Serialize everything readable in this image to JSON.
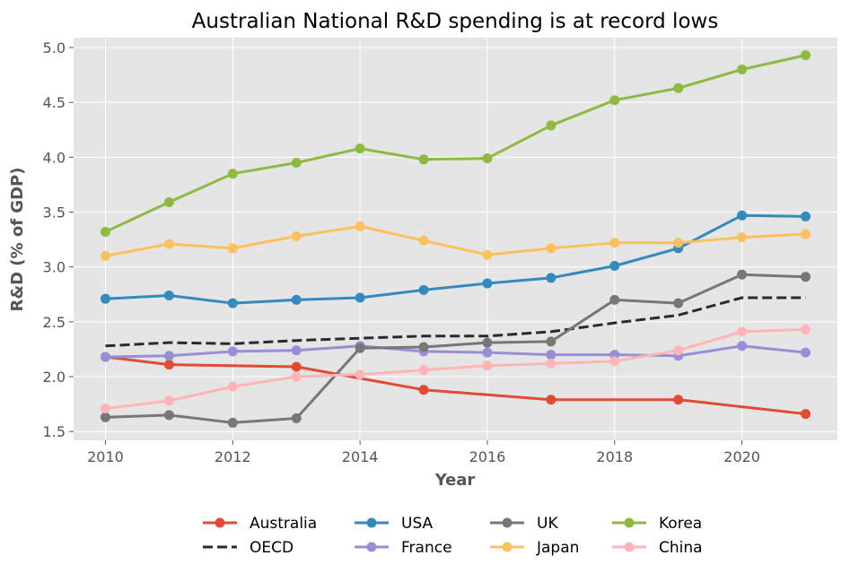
{
  "chart_data": {
    "type": "line",
    "title": "Australian National R&D spending is at record lows",
    "xlabel": "Year",
    "ylabel": "R&D (% of GDP)",
    "xlim": [
      2009.5,
      2021.5
    ],
    "ylim": [
      1.42,
      5.09
    ],
    "xticks": [
      2010,
      2012,
      2014,
      2016,
      2018,
      2020
    ],
    "yticks": [
      1.5,
      2.0,
      2.5,
      3.0,
      3.5,
      4.0,
      4.5,
      5.0
    ],
    "ytick_labels": [
      "1.5",
      "2.0",
      "2.5",
      "3.0",
      "3.5",
      "4.0",
      "4.5",
      "5.0"
    ],
    "grid": true,
    "legend_position": "bottom-center",
    "series": [
      {
        "name": "Australia",
        "color": "#E24A33",
        "dashed": false,
        "markers": true,
        "x": [
          2010,
          2011,
          2013,
          2015,
          2017,
          2019,
          2021
        ],
        "y": [
          2.18,
          2.11,
          2.09,
          1.88,
          1.79,
          1.79,
          1.66
        ]
      },
      {
        "name": "OECD",
        "color": "#2a2a2a",
        "dashed": true,
        "markers": false,
        "x": [
          2010,
          2011,
          2012,
          2013,
          2014,
          2015,
          2016,
          2017,
          2018,
          2019,
          2020,
          2021
        ],
        "y": [
          2.28,
          2.31,
          2.3,
          2.33,
          2.35,
          2.37,
          2.37,
          2.41,
          2.49,
          2.56,
          2.72,
          2.72
        ]
      },
      {
        "name": "USA",
        "color": "#348ABD",
        "dashed": false,
        "markers": true,
        "x": [
          2010,
          2011,
          2012,
          2013,
          2014,
          2015,
          2016,
          2017,
          2018,
          2019,
          2020,
          2021
        ],
        "y": [
          2.71,
          2.74,
          2.67,
          2.7,
          2.72,
          2.79,
          2.85,
          2.9,
          3.01,
          3.17,
          3.47,
          3.46
        ]
      },
      {
        "name": "France",
        "color": "#988ED5",
        "dashed": false,
        "markers": true,
        "x": [
          2010,
          2011,
          2012,
          2013,
          2014,
          2015,
          2016,
          2017,
          2018,
          2019,
          2020,
          2021
        ],
        "y": [
          2.18,
          2.19,
          2.23,
          2.24,
          2.28,
          2.23,
          2.22,
          2.2,
          2.2,
          2.19,
          2.28,
          2.22
        ]
      },
      {
        "name": "UK",
        "color": "#777777",
        "dashed": false,
        "markers": true,
        "x": [
          2010,
          2011,
          2012,
          2013,
          2014,
          2015,
          2016,
          2017,
          2018,
          2019,
          2020,
          2021
        ],
        "y": [
          1.63,
          1.65,
          1.58,
          1.62,
          2.26,
          2.27,
          2.31,
          2.32,
          2.7,
          2.67,
          2.93,
          2.91
        ]
      },
      {
        "name": "Japan",
        "color": "#FBC15E",
        "dashed": false,
        "markers": true,
        "x": [
          2010,
          2011,
          2012,
          2013,
          2014,
          2015,
          2016,
          2017,
          2018,
          2019,
          2020,
          2021
        ],
        "y": [
          3.1,
          3.21,
          3.17,
          3.28,
          3.37,
          3.24,
          3.11,
          3.17,
          3.22,
          3.22,
          3.27,
          3.3
        ]
      },
      {
        "name": "Korea",
        "color": "#8EBA42",
        "dashed": false,
        "markers": true,
        "x": [
          2010,
          2011,
          2012,
          2013,
          2014,
          2015,
          2016,
          2017,
          2018,
          2019,
          2020,
          2021
        ],
        "y": [
          3.32,
          3.59,
          3.85,
          3.95,
          4.08,
          3.98,
          3.99,
          4.29,
          4.52,
          4.63,
          4.8,
          4.93
        ]
      },
      {
        "name": "China",
        "color": "#FFB5B8",
        "dashed": false,
        "markers": true,
        "x": [
          2010,
          2011,
          2012,
          2013,
          2014,
          2015,
          2016,
          2017,
          2018,
          2019,
          2020,
          2021
        ],
        "y": [
          1.71,
          1.78,
          1.91,
          2.0,
          2.02,
          2.06,
          2.1,
          2.12,
          2.14,
          2.24,
          2.41,
          2.43
        ]
      }
    ],
    "legend_order": [
      "Australia",
      "OECD",
      "USA",
      "France",
      "UK",
      "Japan",
      "Korea",
      "China"
    ]
  }
}
